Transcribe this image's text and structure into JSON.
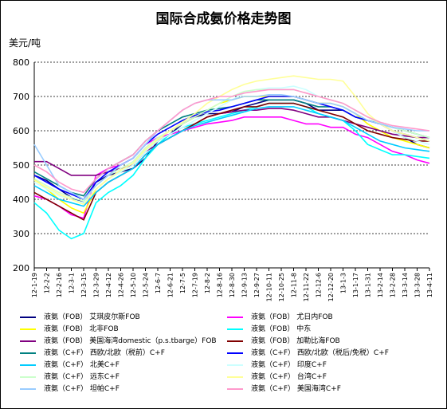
{
  "chart_data": {
    "type": "line",
    "title": "国际合成氨价格走势图",
    "ylabel": "美元/吨",
    "xlabel": "",
    "ylim": [
      200,
      800
    ],
    "yticks": [
      200,
      300,
      400,
      500,
      600,
      700,
      800
    ],
    "grid": true,
    "legend_position": "bottom",
    "categories": [
      "12-1-19",
      "12-2-2",
      "12-2-16",
      "12-3-1",
      "12-3-15",
      "12-3-29",
      "12-4-12",
      "12-4-26",
      "12-5-10",
      "12-5-24",
      "12-6-7",
      "12-6-21",
      "12-7-5",
      "12-7-19",
      "12-8-2",
      "12-8-16",
      "12-8-30",
      "12-9-13",
      "12-9-27",
      "12-10-11",
      "12-10-25",
      "12-11-8",
      "12-11-22",
      "12-12-6",
      "12-12-20",
      "13-1-3",
      "13-1-17",
      "13-1-31",
      "13-2-14",
      "13-2-28",
      "13-3-14",
      "13-3-28",
      "13-4-11"
    ],
    "series": [
      {
        "name": "液氨（FOB） 艾琪皮尔斯FOB",
        "color": "#000080",
        "values": [
          470,
          455,
          430,
          405,
          390,
          450,
          470,
          480,
          490,
          520,
          570,
          590,
          620,
          640,
          650,
          650,
          655,
          670,
          680,
          690,
          690,
          690,
          680,
          660,
          660,
          660,
          640,
          630,
          620,
          600,
          580,
          560,
          550
        ]
      },
      {
        "name": "液氨（FOB） 尤日内FOB",
        "color": "#ff00ff",
        "values": [
          410,
          400,
          380,
          355,
          345,
          470,
          490,
          500,
          520,
          560,
          580,
          590,
          600,
          610,
          620,
          625,
          630,
          640,
          640,
          640,
          640,
          630,
          620,
          620,
          610,
          610,
          590,
          580,
          560,
          540,
          530,
          515,
          505
        ]
      },
      {
        "name": "液氨（FOB） 北非FOB",
        "color": "#ffff00",
        "values": [
          460,
          430,
          400,
          375,
          360,
          430,
          460,
          480,
          500,
          540,
          575,
          600,
          620,
          640,
          660,
          680,
          690,
          700,
          700,
          700,
          700,
          700,
          690,
          680,
          680,
          670,
          650,
          620,
          600,
          580,
          570,
          560,
          550
        ]
      },
      {
        "name": "液氨（FOB） 中东",
        "color": "#00ffff",
        "values": [
          390,
          360,
          310,
          285,
          300,
          390,
          420,
          440,
          470,
          520,
          560,
          590,
          610,
          620,
          630,
          640,
          650,
          660,
          670,
          680,
          680,
          680,
          670,
          650,
          640,
          630,
          600,
          560,
          545,
          530,
          530,
          525,
          520
        ]
      },
      {
        "name": "液氨（FOB） 美国海湾domestic（p.s.tbarge）FOB",
        "color": "#800080",
        "values": [
          510,
          510,
          490,
          470,
          470,
          470,
          480,
          490,
          500,
          540,
          560,
          580,
          600,
          620,
          640,
          650,
          655,
          660,
          660,
          665,
          665,
          660,
          650,
          640,
          640,
          630,
          620,
          610,
          600,
          590,
          585,
          580,
          580
        ]
      },
      {
        "name": "液氨（FOB） 加勒比海FOB",
        "color": "#800000",
        "values": [
          420,
          400,
          380,
          360,
          340,
          420,
          450,
          470,
          490,
          530,
          560,
          580,
          600,
          620,
          640,
          650,
          660,
          670,
          670,
          680,
          680,
          680,
          670,
          660,
          650,
          640,
          620,
          600,
          590,
          580,
          575,
          570,
          570
        ]
      },
      {
        "name": "液氨（C+F） 西欧/北欧（税前）C+F",
        "color": "#008080",
        "values": [
          480,
          460,
          440,
          420,
          410,
          460,
          490,
          510,
          530,
          570,
          600,
          620,
          640,
          650,
          660,
          665,
          670,
          680,
          690,
          690,
          690,
          690,
          680,
          670,
          670,
          660,
          640,
          630,
          620,
          610,
          600,
          590,
          580
        ]
      },
      {
        "name": "液氨（C+F） 西欧/北欧（税后/免税）C+F",
        "color": "#0000ff",
        "values": [
          470,
          450,
          430,
          415,
          400,
          450,
          480,
          500,
          520,
          560,
          590,
          610,
          630,
          645,
          655,
          660,
          670,
          680,
          690,
          700,
          700,
          700,
          690,
          680,
          670,
          660,
          640,
          630,
          620,
          600,
          590,
          580,
          570
        ]
      },
      {
        "name": "液氨（C+F） 北美C+F",
        "color": "#00ccff",
        "values": [
          440,
          420,
          400,
          390,
          380,
          420,
          450,
          470,
          490,
          530,
          560,
          580,
          600,
          615,
          625,
          635,
          645,
          655,
          665,
          670,
          670,
          670,
          660,
          650,
          640,
          630,
          610,
          590,
          570,
          560,
          550,
          545,
          540
        ]
      },
      {
        "name": "液氨（C+F） 印度C+F",
        "color": "#ccffff",
        "values": [
          450,
          430,
          410,
          400,
          390,
          430,
          460,
          480,
          500,
          540,
          570,
          590,
          610,
          630,
          650,
          670,
          690,
          710,
          720,
          725,
          725,
          730,
          720,
          700,
          690,
          680,
          660,
          640,
          620,
          600,
          580,
          570,
          560
        ]
      },
      {
        "name": "液氨（C+F） 远东C+F",
        "color": "#ccffcc",
        "values": [
          460,
          440,
          420,
          405,
          395,
          440,
          470,
          490,
          510,
          550,
          580,
          600,
          620,
          640,
          660,
          680,
          700,
          715,
          720,
          720,
          720,
          720,
          710,
          700,
          690,
          680,
          660,
          640,
          620,
          610,
          600,
          590,
          580
        ]
      },
      {
        "name": "液氨（C+F） 台湾C+F",
        "color": "#ffff99",
        "values": [
          455,
          435,
          415,
          400,
          385,
          430,
          460,
          485,
          505,
          545,
          575,
          600,
          625,
          650,
          680,
          700,
          720,
          735,
          745,
          750,
          755,
          760,
          755,
          750,
          750,
          745,
          700,
          650,
          620,
          600,
          590,
          580,
          570
        ]
      },
      {
        "name": "液氨（C+F） 坦帕C+F",
        "color": "#99ccff",
        "values": [
          560,
          500,
          440,
          420,
          400,
          440,
          470,
          500,
          520,
          560,
          600,
          630,
          660,
          680,
          690,
          690,
          690,
          700,
          700,
          705,
          705,
          700,
          690,
          680,
          680,
          670,
          650,
          630,
          620,
          610,
          605,
          600,
          600
        ]
      },
      {
        "name": "液氨（C+F） 美国海湾C+F",
        "color": "#ff99cc",
        "values": [
          500,
          480,
          450,
          430,
          420,
          460,
          490,
          510,
          530,
          570,
          600,
          630,
          660,
          680,
          690,
          700,
          700,
          710,
          715,
          720,
          720,
          720,
          710,
          700,
          690,
          680,
          660,
          640,
          625,
          615,
          610,
          605,
          600
        ]
      }
    ]
  }
}
